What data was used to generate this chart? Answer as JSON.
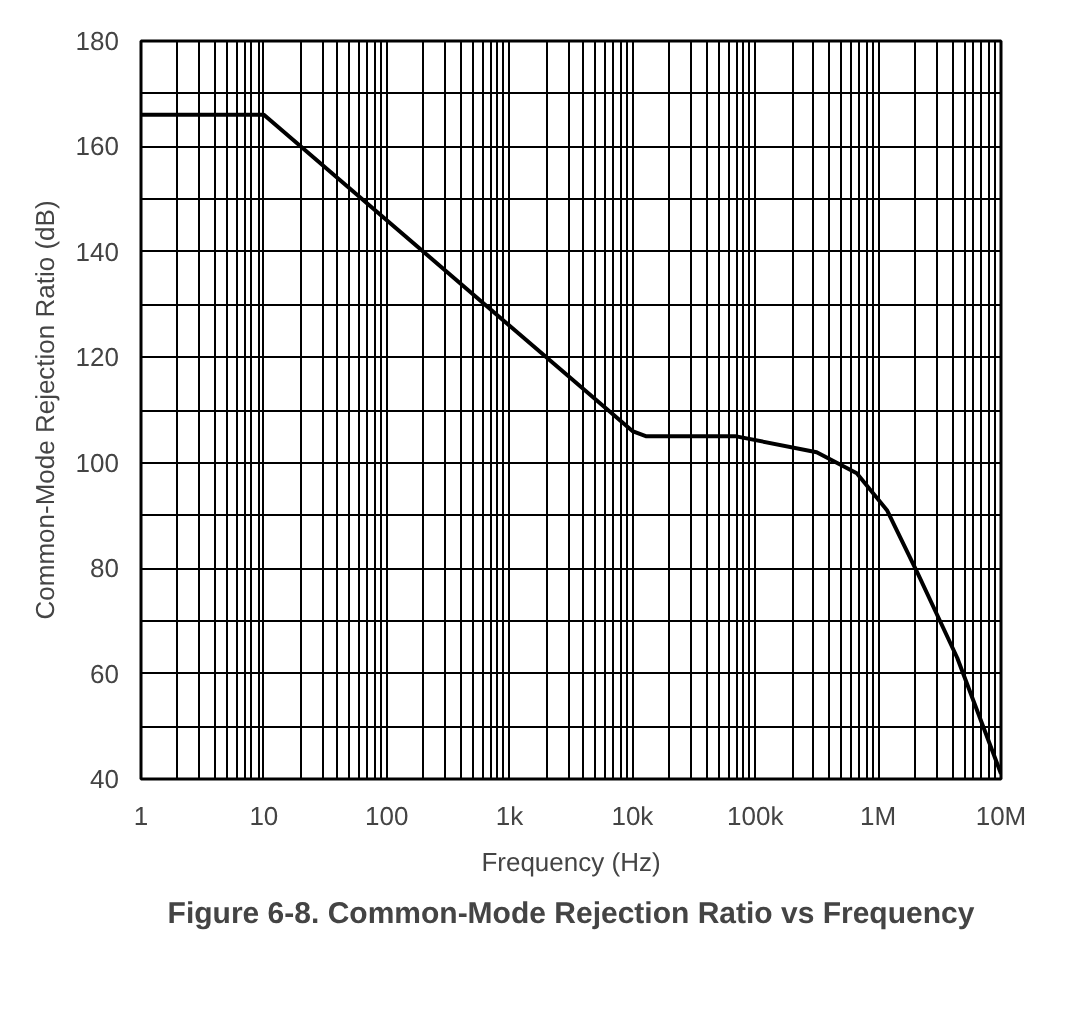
{
  "chart_data": {
    "type": "line",
    "title": "Figure 6-8. Common-Mode Rejection Ratio vs Frequency",
    "xlabel": "Frequency (Hz)",
    "ylabel": "Common-Mode Rejection Ratio (dB)",
    "log": "x",
    "grid": true,
    "marker": "none",
    "line_style": "solid",
    "x": [
      1,
      10,
      10000,
      13000,
      70000,
      316000,
      670000,
      1180000,
      2100000,
      4400000,
      10000000
    ],
    "series": [
      {
        "color": "#000000",
        "values": [
          166,
          166,
          106,
          105,
          105,
          102,
          98,
          91,
          79,
          63,
          41
        ]
      }
    ],
    "xlim": [
      1,
      10000000
    ],
    "ylim": [
      40,
      180
    ],
    "xticks": [
      {
        "value": 1,
        "label": "1"
      },
      {
        "value": 2,
        "label": null
      },
      {
        "value": 3,
        "label": null
      },
      {
        "value": 4,
        "label": null
      },
      {
        "value": 5,
        "label": null
      },
      {
        "value": 6,
        "label": null
      },
      {
        "value": 7,
        "label": null
      },
      {
        "value": 8,
        "label": null
      },
      {
        "value": 9,
        "label": null
      },
      {
        "value": 10,
        "label": "10"
      },
      {
        "value": 20,
        "label": null
      },
      {
        "value": 30,
        "label": null
      },
      {
        "value": 40,
        "label": null
      },
      {
        "value": 50,
        "label": null
      },
      {
        "value": 60,
        "label": null
      },
      {
        "value": 70,
        "label": null
      },
      {
        "value": 80,
        "label": null
      },
      {
        "value": 90,
        "label": null
      },
      {
        "value": 100,
        "label": "100"
      },
      {
        "value": 200,
        "label": null
      },
      {
        "value": 300,
        "label": null
      },
      {
        "value": 400,
        "label": null
      },
      {
        "value": 500,
        "label": null
      },
      {
        "value": 600,
        "label": null
      },
      {
        "value": 700,
        "label": null
      },
      {
        "value": 800,
        "label": null
      },
      {
        "value": 900,
        "label": null
      },
      {
        "value": 1000,
        "label": "1k"
      },
      {
        "value": 2000,
        "label": null
      },
      {
        "value": 3000,
        "label": null
      },
      {
        "value": 4000,
        "label": null
      },
      {
        "value": 5000,
        "label": null
      },
      {
        "value": 6000,
        "label": null
      },
      {
        "value": 7000,
        "label": null
      },
      {
        "value": 8000,
        "label": null
      },
      {
        "value": 9000,
        "label": null
      },
      {
        "value": 10000,
        "label": "10k"
      },
      {
        "value": 20000,
        "label": null
      },
      {
        "value": 30000,
        "label": null
      },
      {
        "value": 40000,
        "label": null
      },
      {
        "value": 50000,
        "label": null
      },
      {
        "value": 60000,
        "label": null
      },
      {
        "value": 70000,
        "label": null
      },
      {
        "value": 80000,
        "label": null
      },
      {
        "value": 90000,
        "label": null
      },
      {
        "value": 100000,
        "label": "100k"
      },
      {
        "value": 200000,
        "label": null
      },
      {
        "value": 300000,
        "label": null
      },
      {
        "value": 400000,
        "label": null
      },
      {
        "value": 500000,
        "label": null
      },
      {
        "value": 600000,
        "label": null
      },
      {
        "value": 700000,
        "label": null
      },
      {
        "value": 800000,
        "label": null
      },
      {
        "value": 900000,
        "label": null
      },
      {
        "value": 1000000,
        "label": "1M"
      },
      {
        "value": 2000000,
        "label": null
      },
      {
        "value": 3000000,
        "label": null
      },
      {
        "value": 4000000,
        "label": null
      },
      {
        "value": 5000000,
        "label": null
      },
      {
        "value": 6000000,
        "label": null
      },
      {
        "value": 7000000,
        "label": null
      },
      {
        "value": 8000000,
        "label": null
      },
      {
        "value": 9000000,
        "label": null
      },
      {
        "value": 10000000,
        "label": "10M"
      }
    ],
    "yticks": [
      40,
      {
        "value": 50,
        "label": null
      },
      60,
      {
        "value": 70,
        "label": null
      },
      80,
      {
        "value": 90,
        "label": null
      },
      100,
      {
        "value": 110,
        "label": null
      },
      120,
      {
        "value": 130,
        "label": null
      },
      140,
      {
        "value": 150,
        "label": null
      },
      160,
      {
        "value": 170,
        "label": null
      },
      180
    ]
  }
}
